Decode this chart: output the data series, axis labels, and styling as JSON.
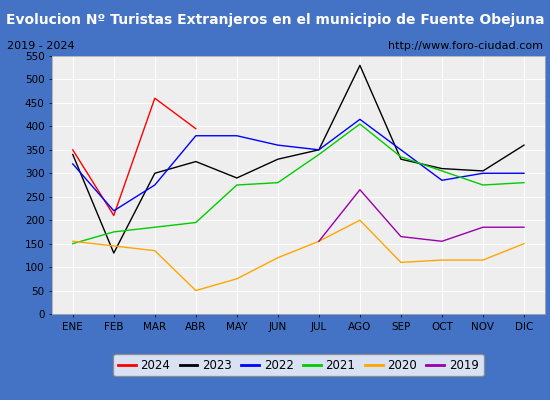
{
  "title": "Evolucion Nº Turistas Extranjeros en el municipio de Fuente Obejuna",
  "subtitle_left": "2019 - 2024",
  "subtitle_right": "http://www.foro-ciudad.com",
  "months": [
    "ENE",
    "FEB",
    "MAR",
    "ABR",
    "MAY",
    "JUN",
    "JUL",
    "AGO",
    "SEP",
    "OCT",
    "NOV",
    "DIC"
  ],
  "ylim": [
    0,
    550
  ],
  "yticks": [
    0,
    50,
    100,
    150,
    200,
    250,
    300,
    350,
    400,
    450,
    500,
    550
  ],
  "series": {
    "2024": {
      "color": "#ff0000",
      "values": [
        350,
        210,
        460,
        395,
        null,
        null,
        null,
        null,
        null,
        null,
        null,
        null
      ]
    },
    "2023": {
      "color": "#000000",
      "values": [
        340,
        130,
        300,
        325,
        290,
        330,
        350,
        530,
        330,
        310,
        305,
        360
      ]
    },
    "2022": {
      "color": "#0000ff",
      "values": [
        320,
        220,
        275,
        380,
        380,
        360,
        350,
        415,
        350,
        285,
        300,
        300
      ]
    },
    "2021": {
      "color": "#00cc00",
      "values": [
        150,
        175,
        185,
        195,
        275,
        280,
        340,
        405,
        335,
        305,
        275,
        280
      ]
    },
    "2020": {
      "color": "#ffa500",
      "values": [
        155,
        145,
        135,
        50,
        75,
        120,
        155,
        200,
        110,
        115,
        115,
        150
      ]
    },
    "2019": {
      "color": "#9900aa",
      "values": [
        null,
        null,
        null,
        null,
        null,
        null,
        155,
        265,
        165,
        155,
        185,
        185
      ]
    }
  },
  "title_bg_color": "#4472c4",
  "title_fg_color": "#ffffff",
  "plot_bg_color": "#eeeeee",
  "border_color": "#4472c4",
  "grid_color": "#ffffff",
  "title_fontsize": 10,
  "subtitle_fontsize": 8,
  "tick_fontsize": 7.5,
  "legend_fontsize": 8.5
}
